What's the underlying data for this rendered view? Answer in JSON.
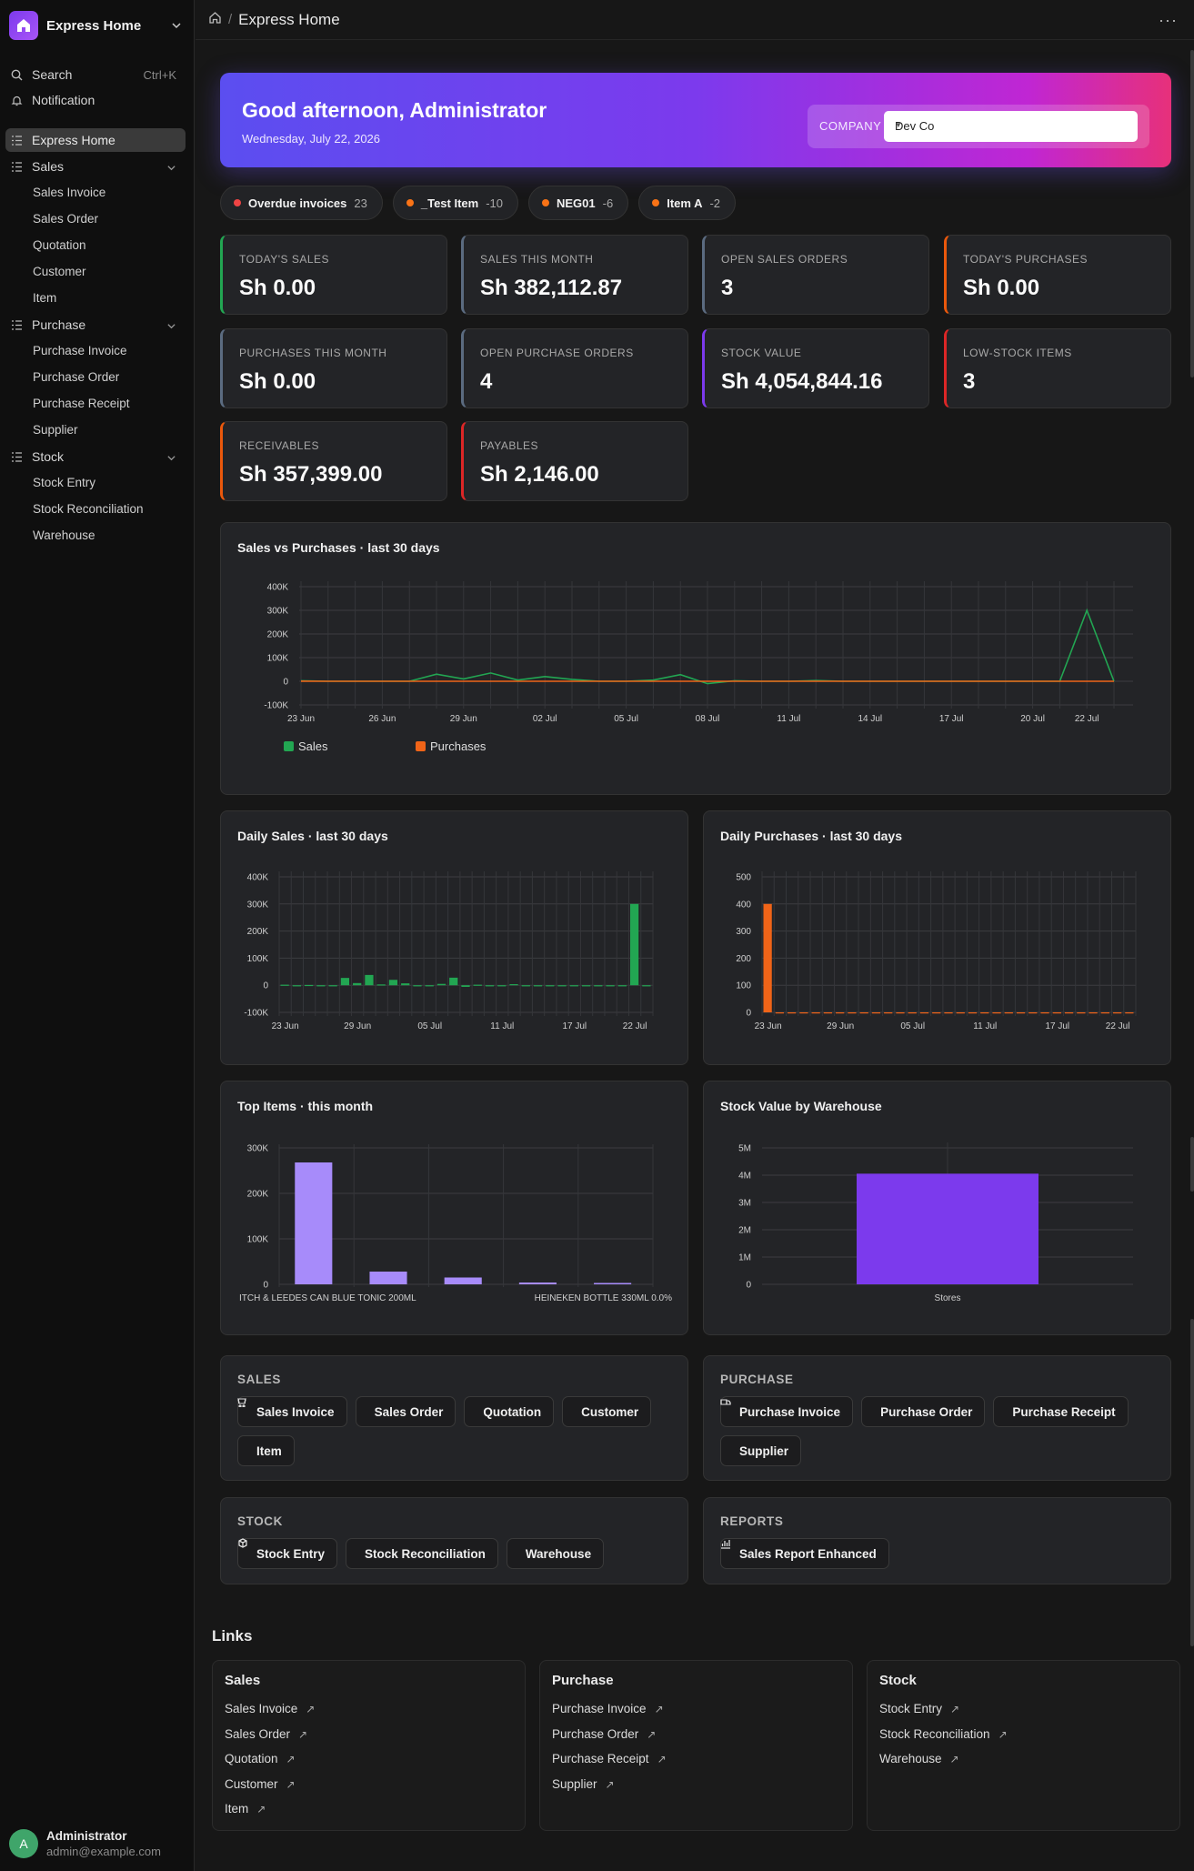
{
  "app": {
    "title": "Express Home"
  },
  "sidebar": {
    "search_label": "Search",
    "search_shortcut": "Ctrl+K",
    "notification_label": "Notification",
    "home_label": "Express Home",
    "groups": [
      {
        "label": "Sales",
        "items": [
          "Sales Invoice",
          "Sales Order",
          "Quotation",
          "Customer",
          "Item"
        ]
      },
      {
        "label": "Purchase",
        "items": [
          "Purchase Invoice",
          "Purchase Order",
          "Purchase Receipt",
          "Supplier"
        ]
      },
      {
        "label": "Stock",
        "items": [
          "Stock Entry",
          "Stock Reconciliation",
          "Warehouse"
        ]
      }
    ],
    "user": {
      "initial": "A",
      "name": "Administrator",
      "email": "admin@example.com"
    }
  },
  "topbar": {
    "breadcrumb_current": "Express Home",
    "more_label": "···"
  },
  "hero": {
    "greeting": "Good afternoon, Administrator",
    "date": "Wednesday, July 22, 2026",
    "company_label": "COMPANY",
    "company_value": "Dev Co"
  },
  "chips": [
    {
      "label": "Overdue invoices",
      "count": "23",
      "color": "#ef4444"
    },
    {
      "label": "_Test Item",
      "count": "-10",
      "color": "#f97316"
    },
    {
      "label": "NEG01",
      "count": "-6",
      "color": "#f97316"
    },
    {
      "label": "Item A",
      "count": "-2",
      "color": "#f97316"
    }
  ],
  "kpis": [
    {
      "label": "Today's Sales",
      "value": "Sh 0.00",
      "accent": "#22a652"
    },
    {
      "label": "Sales This Month",
      "value": "Sh 382,112.87",
      "accent": "#5b6b80"
    },
    {
      "label": "Open Sales Orders",
      "value": "3",
      "accent": "#5b6b80"
    },
    {
      "label": "Today's Purchases",
      "value": "Sh 0.00",
      "accent": "#ea580c"
    },
    {
      "label": "Purchases This Month",
      "value": "Sh 0.00",
      "accent": "#5b6b80"
    },
    {
      "label": "Open Purchase Orders",
      "value": "4",
      "accent": "#5b6b80"
    },
    {
      "label": "Stock Value",
      "value": "Sh 4,054,844.16",
      "accent": "#7c3aed"
    },
    {
      "label": "Low-Stock Items",
      "value": "3",
      "accent": "#dc2626"
    },
    {
      "label": "Receivables",
      "value": "Sh 357,399.00",
      "accent": "#ea580c"
    },
    {
      "label": "Payables",
      "value": "Sh 2,146.00",
      "accent": "#dc2626"
    }
  ],
  "chart_data": [
    {
      "type": "line",
      "title": "Sales vs Purchases · last 30 days",
      "x_ticks": [
        "23 Jun",
        "26 Jun",
        "29 Jun",
        "02 Jul",
        "05 Jul",
        "08 Jul",
        "11 Jul",
        "14 Jul",
        "17 Jul",
        "20 Jul",
        "22 Jul"
      ],
      "y_ticks": [
        "400K",
        "300K",
        "200K",
        "100K",
        "0",
        "-100K"
      ],
      "ylim": [
        -100000,
        400000
      ],
      "grid": true,
      "legend_position": "bottom-left",
      "series": [
        {
          "name": "Sales",
          "color": "#22a652",
          "values": [
            2000,
            0,
            0,
            0,
            0,
            30000,
            10000,
            35000,
            5000,
            20000,
            8000,
            0,
            0,
            5000,
            28000,
            -10000,
            2000,
            0,
            0,
            3000,
            0,
            0,
            0,
            0,
            0,
            0,
            0,
            0,
            0,
            300000,
            0
          ]
        },
        {
          "name": "Purchases",
          "color": "#f06418",
          "values": [
            400,
            0,
            0,
            0,
            0,
            0,
            0,
            0,
            0,
            0,
            0,
            0,
            0,
            0,
            0,
            0,
            0,
            0,
            0,
            0,
            0,
            0,
            0,
            0,
            0,
            0,
            0,
            0,
            0,
            0,
            0
          ]
        }
      ]
    },
    {
      "type": "bar",
      "title": "Daily Sales · last 30 days",
      "x_ticks": [
        "23 Jun",
        "29 Jun",
        "05 Jul",
        "11 Jul",
        "17 Jul",
        "22 Jul"
      ],
      "y_ticks": [
        "400K",
        "300K",
        "200K",
        "100K",
        "0",
        "-100K"
      ],
      "ylim": [
        -100000,
        400000
      ],
      "grid": true,
      "color": "#22a652",
      "values": [
        2000,
        0,
        1000,
        0,
        0,
        27000,
        8000,
        38000,
        3000,
        20000,
        7000,
        0,
        0,
        5000,
        28000,
        -6000,
        2000,
        0,
        0,
        4000,
        0,
        0,
        0,
        0,
        0,
        0,
        0,
        0,
        0,
        300000,
        0
      ]
    },
    {
      "type": "bar",
      "title": "Daily Purchases · last 30 days",
      "x_ticks": [
        "23 Jun",
        "29 Jun",
        "05 Jul",
        "11 Jul",
        "17 Jul",
        "22 Jul"
      ],
      "y_ticks": [
        "500",
        "400",
        "300",
        "200",
        "100",
        "0"
      ],
      "ylim": [
        0,
        500
      ],
      "grid": true,
      "color": "#f06418",
      "values": [
        400,
        0,
        0,
        0,
        0,
        0,
        0,
        0,
        0,
        0,
        0,
        0,
        0,
        0,
        0,
        0,
        0,
        0,
        0,
        0,
        0,
        0,
        0,
        0,
        0,
        0,
        0,
        0,
        0,
        0,
        0
      ]
    },
    {
      "type": "bar",
      "title": "Top Items · this month",
      "categories": [
        "ITCH & LEEDES CAN BLUE TONIC 200ML",
        "",
        "",
        "",
        "HEINEKEN BOTTLE 330ML 0.0%"
      ],
      "y_ticks": [
        "300K",
        "200K",
        "100K",
        "0"
      ],
      "ylim": [
        0,
        300000
      ],
      "grid": true,
      "color": "#a78bfa",
      "values": [
        268000,
        28000,
        15000,
        4000,
        3000
      ]
    },
    {
      "type": "bar",
      "title": "Stock Value by Warehouse",
      "categories": [
        "Stores"
      ],
      "y_ticks": [
        "5M",
        "4M",
        "3M",
        "2M",
        "1M",
        "0"
      ],
      "ylim": [
        0,
        5000000
      ],
      "grid": true,
      "color": "#7c3aed",
      "values": [
        4054844.16
      ]
    }
  ],
  "shortcuts": [
    {
      "title": "SALES",
      "icon": "sales-icon",
      "items": [
        "Sales Invoice",
        "Sales Order",
        "Quotation",
        "Customer",
        "Item"
      ]
    },
    {
      "title": "PURCHASE",
      "icon": "purchase-icon",
      "items": [
        "Purchase Invoice",
        "Purchase Order",
        "Purchase Receipt",
        "Supplier"
      ]
    },
    {
      "title": "STOCK",
      "icon": "stock-icon",
      "items": [
        "Stock Entry",
        "Stock Reconciliation",
        "Warehouse"
      ]
    },
    {
      "title": "REPORTS",
      "icon": "report-icon",
      "items": [
        "Sales Report Enhanced"
      ]
    }
  ],
  "links": {
    "title": "Links",
    "groups": [
      {
        "title": "Sales",
        "items": [
          "Sales Invoice",
          "Sales Order",
          "Quotation",
          "Customer",
          "Item"
        ]
      },
      {
        "title": "Purchase",
        "items": [
          "Purchase Invoice",
          "Purchase Order",
          "Purchase Receipt",
          "Supplier"
        ]
      },
      {
        "title": "Stock",
        "items": [
          "Stock Entry",
          "Stock Reconciliation",
          "Warehouse"
        ]
      }
    ]
  }
}
